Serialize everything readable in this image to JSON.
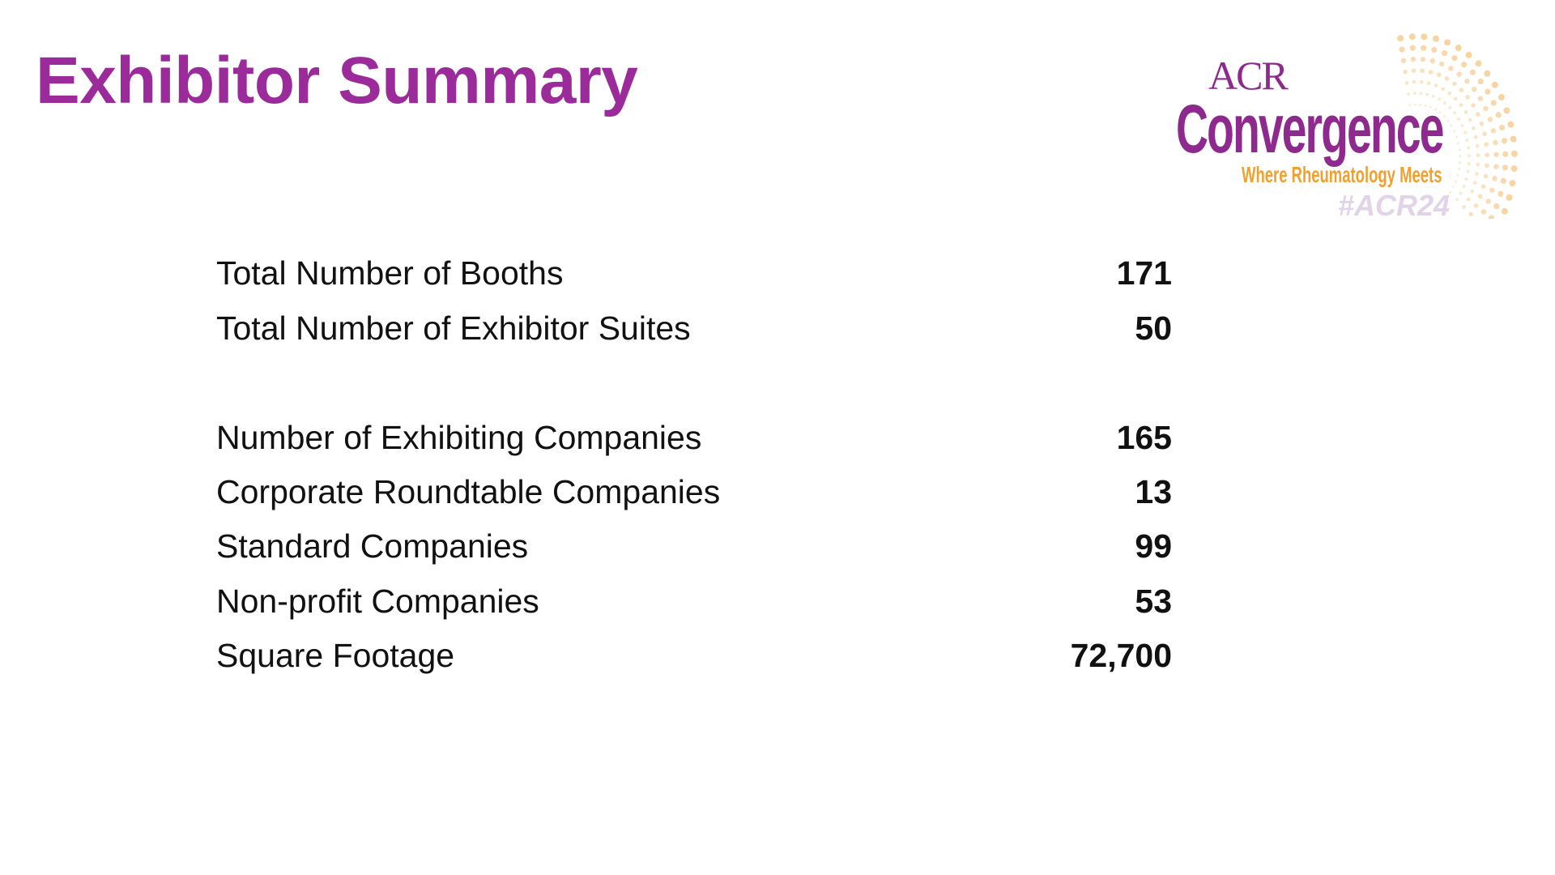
{
  "title": "Exhibitor Summary",
  "logo": {
    "acr": "ACR",
    "name": "Convergence",
    "tagline": "Where Rheumatology Meets",
    "hashtag": "#ACR24"
  },
  "rows": [
    {
      "label": "Total Number of Booths",
      "value": "171"
    },
    {
      "label": "Total Number of Exhibitor Suites",
      "value": "50"
    },
    {
      "label": "Number of Exhibiting Companies",
      "value": "165"
    },
    {
      "label": "Corporate Roundtable Companies",
      "value": "13"
    },
    {
      "label": "Standard Companies",
      "value": "99"
    },
    {
      "label": "Non-profit Companies",
      "value": "53"
    },
    {
      "label": "Square Footage",
      "value": "72,700"
    }
  ]
}
